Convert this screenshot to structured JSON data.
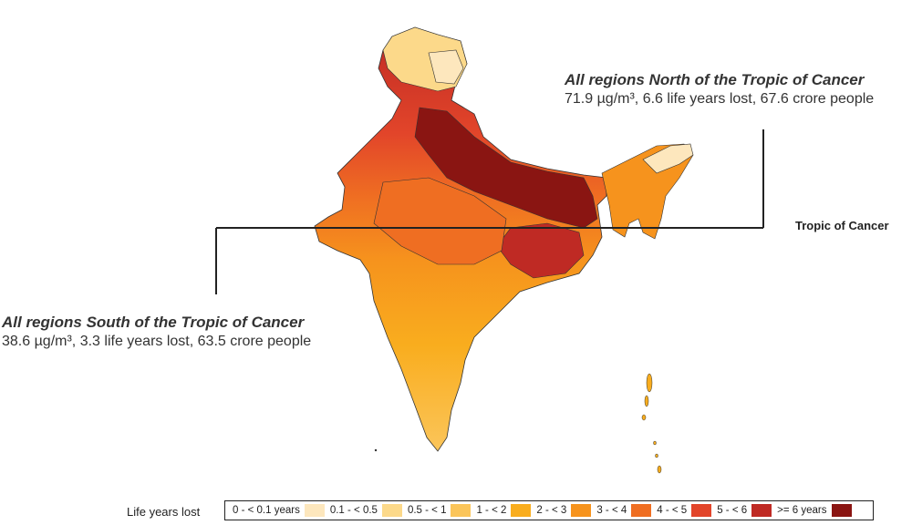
{
  "map": {
    "title_north": "All regions North of  the Tropic of Cancer",
    "stats_north": "71.9  µg/m³, 6.6 life years lost, 67.6 crore people",
    "title_south": "All regions South of  the Tropic of Cancer",
    "stats_south": "38.6  µg/m³, 3.3 life years lost, 63.5 crore people",
    "tropic_label": "Tropic of Cancer"
  },
  "legend": {
    "title": "Life years lost",
    "items": [
      {
        "label": "0 - < 0.1 years",
        "color": "#fde7bd"
      },
      {
        "label": "0.1 - < 0.5",
        "color": "#fcd98a"
      },
      {
        "label": "0.5 - < 1",
        "color": "#fbc55a"
      },
      {
        "label": "1 - < 2",
        "color": "#f9ad1e"
      },
      {
        "label": "2 - < 3",
        "color": "#f6931d"
      },
      {
        "label": "3 - < 4",
        "color": "#ef6e22"
      },
      {
        "label": "4 - < 5",
        "color": "#e2452a"
      },
      {
        "label": "5 - < 6",
        "color": "#bf2a24"
      },
      {
        "label": ">= 6 years",
        "color": "#8a1512"
      }
    ]
  }
}
